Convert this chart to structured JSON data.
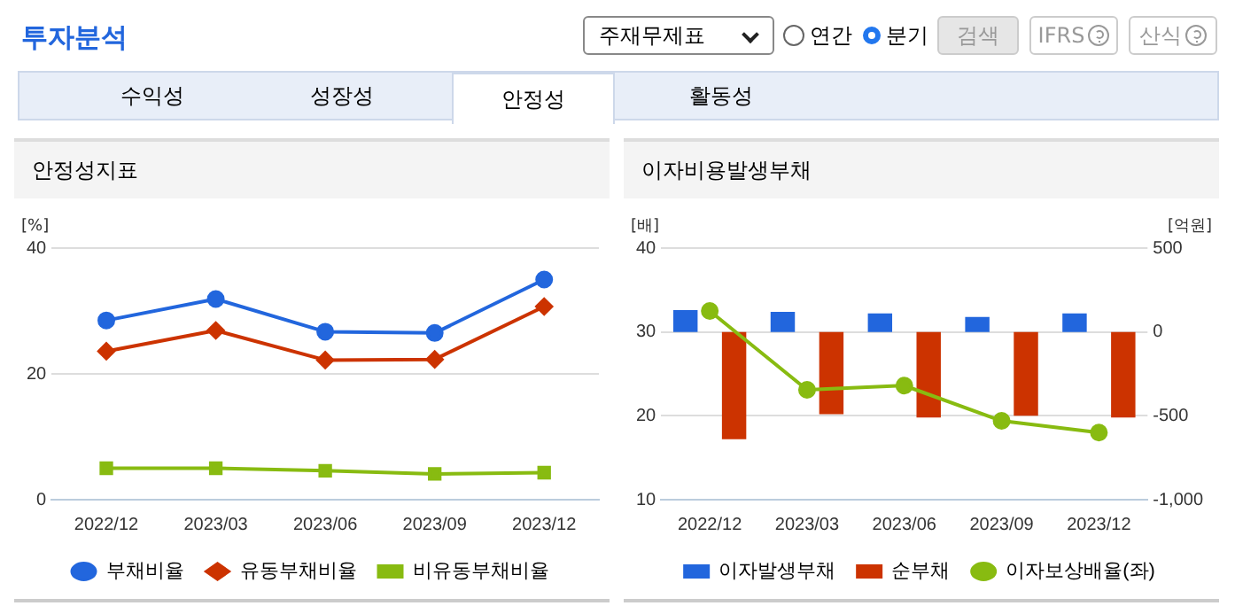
{
  "chart_data": [
    {
      "type": "line",
      "title": "안정성지표",
      "ylabel": "[%]",
      "categories": [
        "2022/12",
        "2023/03",
        "2023/06",
        "2023/09",
        "2023/12"
      ],
      "series": [
        {
          "name": "부채비율",
          "color": "#2266dd",
          "marker": "circle",
          "values": [
            28.5,
            31.9,
            26.7,
            26.5,
            35.0
          ]
        },
        {
          "name": "유동부채비율",
          "color": "#cc3300",
          "marker": "diamond",
          "values": [
            23.6,
            26.9,
            22.2,
            22.3,
            30.7
          ]
        },
        {
          "name": "비유동부채비율",
          "color": "#88bb11",
          "marker": "square",
          "values": [
            5.0,
            5.0,
            4.6,
            4.1,
            4.3
          ]
        }
      ],
      "ylim": [
        0,
        40
      ],
      "yticks": [
        0,
        20,
        40
      ],
      "grid": "y",
      "legend": "bottom",
      "annotations": [
        "투자분석",
        "주재무제표",
        "연간",
        "분기",
        "검색",
        "IFRS",
        "산식",
        "수익성",
        "성장성",
        "안정성",
        "활동성"
      ]
    },
    {
      "type": "bar",
      "title": "이자비용발생부채",
      "ylabel": "[배]",
      "y2label": "[억원]",
      "categories": [
        "2022/12",
        "2023/03",
        "2023/06",
        "2023/09",
        "2023/12"
      ],
      "series": [
        {
          "name": "이자발생부채",
          "color": "#2266dd",
          "axis": "y2",
          "values": [
            130,
            120,
            110,
            90,
            110
          ]
        },
        {
          "name": "순부채",
          "color": "#cc3300",
          "axis": "y2",
          "values": [
            -640,
            -490,
            -510,
            -500,
            -510
          ]
        },
        {
          "name": "이자보상배율(좌)",
          "type": "line",
          "color": "#88bb11",
          "marker": "circle",
          "values": [
            32.5,
            23.1,
            23.6,
            19.4,
            18.0
          ]
        }
      ],
      "ylim": [
        10,
        40
      ],
      "yticks": [
        10,
        20,
        30,
        40
      ],
      "y2lim": [
        -1000,
        500
      ],
      "y2ticks": [
        {
          "value": -1000,
          "label": "-1,000"
        },
        {
          "value": -500,
          "label": "-500"
        },
        {
          "value": 0,
          "label": "0"
        },
        {
          "value": 500,
          "label": "500"
        }
      ],
      "grid": "y",
      "legend": "bottom"
    }
  ]
}
